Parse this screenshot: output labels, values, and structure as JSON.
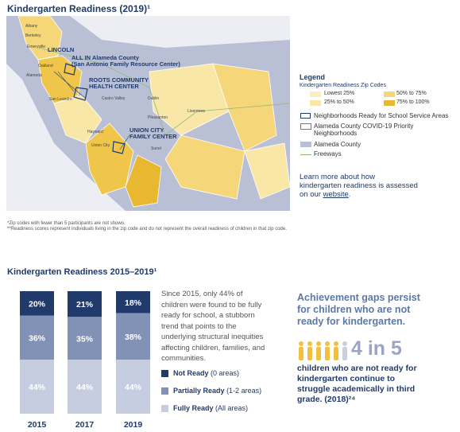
{
  "map_section": {
    "title": "Kindergarten Readiness (2019)¹",
    "sites": [
      "LINCOLN",
      "ALL IN Alameda County",
      "(San Antonio Family Resource Center)",
      "ROOTS COMMUNITY",
      "HEALTH CENTER",
      "UNION CITY",
      "FAMILY CENTER"
    ],
    "places": [
      "Albany",
      "Berkeley",
      "Emeryville",
      "Oakland",
      "Alameda",
      "San Leandro",
      "Castro Valley",
      "Dublin",
      "Pleasanton",
      "Livermore",
      "Hayward",
      "Union City",
      "Sunol"
    ],
    "legend": {
      "title": "Legend",
      "subtitle": "Kindergarten Readiness Zip Codes",
      "quartiles": [
        "Lowest 25%",
        "50% to 75%",
        "25% to 50%",
        "75% to 100%"
      ],
      "items": [
        "Neighborhoods Ready for School Service Areas",
        "Alameda County COVID-19 Priority Neighborhoods",
        "Alameda County",
        "Freeways"
      ]
    },
    "learn_more": {
      "text": "Learn more about how kindergarten readiness is assessed on our ",
      "link": "website",
      "end": "."
    },
    "footnotes": [
      "*Zip codes with fewer than 5 participants are not shown.",
      "**Readiness scores represent individuals living in the zip code and do not represent the overall readiness of children in that zip code."
    ]
  },
  "chart_data": {
    "type": "bar",
    "stacked": true,
    "title": "Kindergarten Readiness 2015–2019¹",
    "categories": [
      "2015",
      "2017",
      "2019"
    ],
    "series": [
      {
        "name": "Not Ready",
        "detail": "(0 areas)",
        "color": "#1f3a6b",
        "values": [
          20,
          21,
          18
        ],
        "value_labels": [
          "20%",
          "21%",
          "18%"
        ]
      },
      {
        "name": "Partially Ready",
        "detail": "(1-2 areas)",
        "color": "#8192b6",
        "values": [
          36,
          35,
          38
        ],
        "value_labels": [
          "36%",
          "35%",
          "38%"
        ]
      },
      {
        "name": "Fully Ready",
        "detail": "(All areas)",
        "color": "#c6cde0",
        "values": [
          44,
          44,
          44
        ],
        "value_labels": [
          "44%",
          "44%",
          "44%"
        ]
      }
    ],
    "annotation": "Since 2015, only 44% of children were found to be fully ready for school, a stubborn trend that points to the underlying structural inequities affecting children, families, and communities."
  },
  "callout": {
    "headline": "Achievement gaps persist for children who are not ready for kindergarten.",
    "stat": "4 in 5",
    "text": "children who are not ready for kindergarten continue to struggle academically in third grade. (2018)²⁴"
  }
}
